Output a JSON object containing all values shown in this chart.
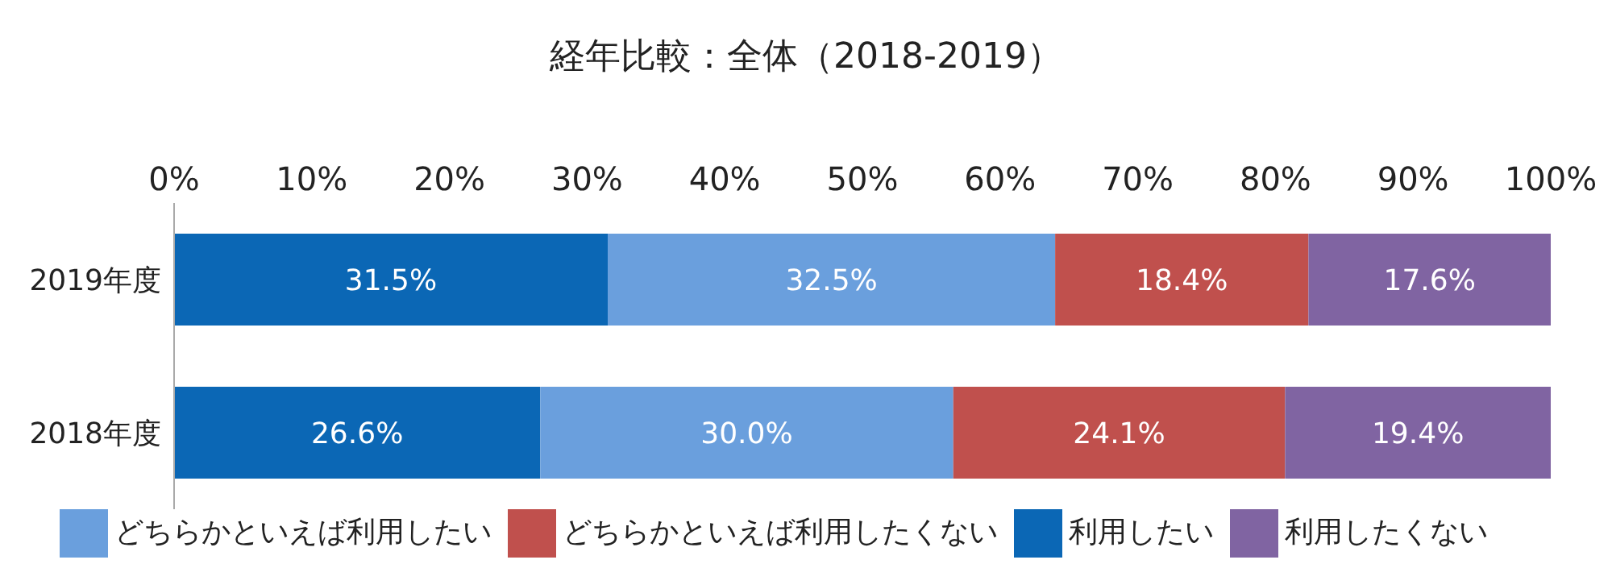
{
  "chart_data": {
    "type": "bar",
    "orientation": "horizontal",
    "stacked": true,
    "title": "経年比較：全体（2018-2019）",
    "categories": [
      "2019年度",
      "2018年度"
    ],
    "xlim": [
      0,
      100
    ],
    "xticks": [
      {
        "value": 0,
        "label": "0%"
      },
      {
        "value": 10,
        "label": "10%"
      },
      {
        "value": 20,
        "label": "20%"
      },
      {
        "value": 30,
        "label": "30%"
      },
      {
        "value": 40,
        "label": "40%"
      },
      {
        "value": 50,
        "label": "50%"
      },
      {
        "value": 60,
        "label": "60%"
      },
      {
        "value": 70,
        "label": "70%"
      },
      {
        "value": 80,
        "label": "80%"
      },
      {
        "value": 90,
        "label": "90%"
      },
      {
        "value": 100,
        "label": "100%"
      }
    ],
    "legend": "bottom",
    "series": [
      {
        "name": "利用したい",
        "color": "#0b67b5",
        "values": [
          31.5,
          26.6
        ],
        "value_labels": [
          "31.5%",
          "26.6%"
        ]
      },
      {
        "name": "どちらかといえば利用したい",
        "color": "#6a9fdd",
        "values": [
          32.5,
          30.0
        ],
        "value_labels": [
          "32.5%",
          "30.0%"
        ]
      },
      {
        "name": "どちらかといえば利用したくない",
        "color": "#c0504d",
        "values": [
          18.4,
          24.1
        ],
        "value_labels": [
          "18.4%",
          "24.1%"
        ]
      },
      {
        "name": "利用したくない",
        "color": "#8064a2",
        "values": [
          17.6,
          19.4
        ],
        "value_labels": [
          "17.6%",
          "19.4%"
        ]
      }
    ]
  }
}
